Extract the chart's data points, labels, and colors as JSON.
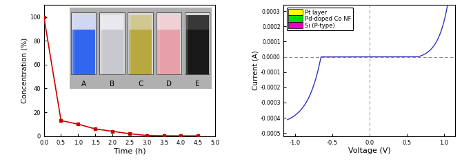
{
  "left_plot": {
    "x_data": [
      0.0,
      0.5,
      1.0,
      1.5,
      2.0,
      2.5,
      3.0,
      3.5,
      4.0,
      4.5
    ],
    "y_data": [
      100,
      13,
      10,
      6,
      4,
      2,
      0.5,
      0.3,
      0.2,
      0.2
    ],
    "xlabel": "Time (h)",
    "ylabel": "Concentration (%)",
    "xlim": [
      0,
      5.0
    ],
    "ylim": [
      0,
      110
    ],
    "xticks": [
      0.0,
      0.5,
      1.0,
      1.5,
      2.0,
      2.5,
      3.0,
      3.5,
      4.0,
      4.5,
      5.0
    ],
    "yticks": [
      0,
      20,
      40,
      60,
      80,
      100
    ],
    "line_color": "#cc0000",
    "marker": "s",
    "marker_size": 3,
    "inset_labels": [
      "A",
      "B",
      "C",
      "D",
      "E"
    ],
    "beaker_liquid_colors": [
      "#3366ee",
      "#c8c8d0",
      "#b8a840",
      "#e8a0a8",
      "#181818"
    ],
    "beaker_top_colors": [
      "#d0d8f0",
      "#e8e8ee",
      "#d0c890",
      "#f0d0d4",
      "#383838"
    ],
    "beaker_bg_colors": [
      "#5588cc",
      "#b0b0c0",
      "#a09030",
      "#d090a0",
      "#101010"
    ]
  },
  "right_plot": {
    "xlabel": "Voltage (V)",
    "ylabel": "Current (A)",
    "xlim": [
      -1.15,
      1.15
    ],
    "ylim": [
      -0.00052,
      0.00034
    ],
    "xticks": [
      -1.0,
      -0.5,
      0.0,
      0.5,
      1.0
    ],
    "ytick_vals": [
      -0.0005,
      -0.0004,
      -0.0003,
      -0.0002,
      -0.0001,
      0.0,
      0.0001,
      0.0002,
      0.0003
    ],
    "ytick_labels": [
      "-0.0005",
      "-0.0004",
      "-0.0003",
      "-0.0002",
      "-0.0001",
      "0.0000",
      "0.0001",
      "0.0002",
      "0.0003"
    ],
    "line_color": "#3333bb",
    "vline_x": 0.0,
    "hline_y": 0.0,
    "legend_entries": [
      "Pt layer",
      "Pd-doped Co NF",
      "Si (P-type)"
    ],
    "legend_colors": [
      "#ffff00",
      "#00dd00",
      "#ee00bb"
    ]
  }
}
